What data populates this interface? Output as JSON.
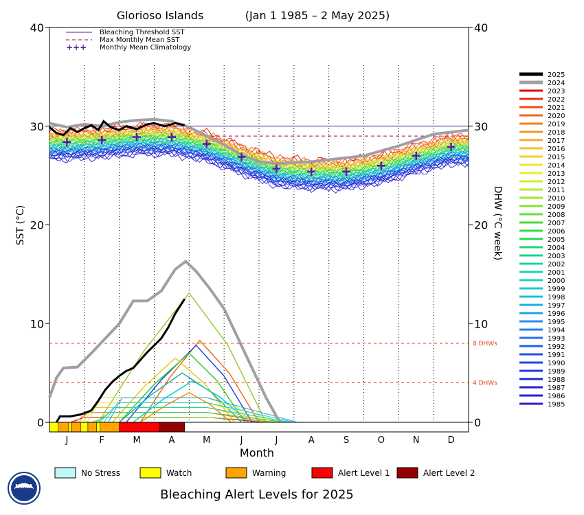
{
  "chart_data": {
    "type": "line",
    "title_left": "Glorioso Islands",
    "title_right": "(Jan 1 1985 – 2 May 2025)",
    "xlabel": "Month",
    "ylabel_left": "SST (°C)",
    "ylabel_right": "DHW (°C week)",
    "months": [
      "J",
      "F",
      "M",
      "A",
      "M",
      "J",
      "J",
      "A",
      "S",
      "O",
      "N",
      "D"
    ],
    "ylim": [
      0,
      40
    ],
    "yticks": [
      "0",
      "10",
      "20",
      "30",
      "40"
    ],
    "bleaching_threshold_sst": 30.0,
    "max_monthly_mean_sst": 29.0,
    "dhw_refs": [
      {
        "value": 8,
        "label": "8 DHWs"
      },
      {
        "value": 4,
        "label": "4 DHWs"
      }
    ],
    "top_legend": [
      {
        "label": "Bleaching Threshold SST",
        "color": "#5a1a8a"
      },
      {
        "label": "Max Monthly Mean SST",
        "color": "#a0005a"
      },
      {
        "label": "Monthly Mean Climatology",
        "color": "#5a1aa8",
        "symbol": "+++"
      }
    ],
    "climatology": [
      {
        "month": 0.5,
        "value": 28.4
      },
      {
        "month": 1.5,
        "value": 28.6
      },
      {
        "month": 2.5,
        "value": 28.9
      },
      {
        "month": 3.5,
        "value": 28.9
      },
      {
        "month": 4.5,
        "value": 28.2
      },
      {
        "month": 5.5,
        "value": 26.9
      },
      {
        "month": 6.5,
        "value": 25.7
      },
      {
        "month": 7.5,
        "value": 25.4
      },
      {
        "month": 8.5,
        "value": 25.4
      },
      {
        "month": 9.5,
        "value": 26.0
      },
      {
        "month": 10.5,
        "value": 27.0
      },
      {
        "month": 11.5,
        "value": 27.9
      }
    ],
    "sst_2025": [
      {
        "month": 0.0,
        "value": 29.9
      },
      {
        "month": 0.2,
        "value": 29.3
      },
      {
        "month": 0.4,
        "value": 29.1
      },
      {
        "month": 0.6,
        "value": 29.8
      },
      {
        "month": 0.8,
        "value": 29.4
      },
      {
        "month": 1.0,
        "value": 29.8
      },
      {
        "month": 1.2,
        "value": 30.1
      },
      {
        "month": 1.4,
        "value": 29.6
      },
      {
        "month": 1.55,
        "value": 30.5
      },
      {
        "month": 1.75,
        "value": 29.9
      },
      {
        "month": 2.0,
        "value": 29.6
      },
      {
        "month": 2.2,
        "value": 30.0
      },
      {
        "month": 2.5,
        "value": 29.7
      },
      {
        "month": 2.8,
        "value": 30.2
      },
      {
        "month": 3.0,
        "value": 30.3
      },
      {
        "month": 3.3,
        "value": 30.0
      },
      {
        "month": 3.6,
        "value": 30.3
      },
      {
        "month": 3.87,
        "value": 30.1
      }
    ],
    "sst_2024": [
      {
        "month": 0.0,
        "value": 30.3
      },
      {
        "month": 0.5,
        "value": 29.9
      },
      {
        "month": 1.0,
        "value": 30.2
      },
      {
        "month": 1.5,
        "value": 30.0
      },
      {
        "month": 2.0,
        "value": 30.4
      },
      {
        "month": 2.5,
        "value": 30.6
      },
      {
        "month": 3.0,
        "value": 30.7
      },
      {
        "month": 3.5,
        "value": 30.5
      },
      {
        "month": 4.0,
        "value": 29.9
      },
      {
        "month": 4.5,
        "value": 29.0
      },
      {
        "month": 5.0,
        "value": 28.1
      },
      {
        "month": 5.5,
        "value": 27.1
      },
      {
        "month": 6.0,
        "value": 26.4
      },
      {
        "month": 6.5,
        "value": 26.2
      },
      {
        "month": 7.0,
        "value": 26.3
      },
      {
        "month": 7.5,
        "value": 26.4
      },
      {
        "month": 8.0,
        "value": 26.6
      },
      {
        "month": 8.5,
        "value": 26.8
      },
      {
        "month": 9.0,
        "value": 27.0
      },
      {
        "month": 9.5,
        "value": 27.5
      },
      {
        "month": 10.0,
        "value": 28.0
      },
      {
        "month": 10.5,
        "value": 28.6
      },
      {
        "month": 11.0,
        "value": 29.2
      },
      {
        "month": 11.5,
        "value": 29.4
      },
      {
        "month": 12.0,
        "value": 29.6
      }
    ],
    "dhw_2025": [
      {
        "month": 0.2,
        "value": 0.0
      },
      {
        "month": 0.3,
        "value": 0.6
      },
      {
        "month": 0.6,
        "value": 0.6
      },
      {
        "month": 0.9,
        "value": 0.8
      },
      {
        "month": 1.2,
        "value": 1.2
      },
      {
        "month": 1.4,
        "value": 2.2
      },
      {
        "month": 1.6,
        "value": 3.3
      },
      {
        "month": 1.8,
        "value": 4.1
      },
      {
        "month": 2.0,
        "value": 4.7
      },
      {
        "month": 2.2,
        "value": 5.2
      },
      {
        "month": 2.4,
        "value": 5.5
      },
      {
        "month": 2.6,
        "value": 6.3
      },
      {
        "month": 2.8,
        "value": 7.1
      },
      {
        "month": 3.0,
        "value": 7.8
      },
      {
        "month": 3.2,
        "value": 8.5
      },
      {
        "month": 3.4,
        "value": 9.6
      },
      {
        "month": 3.6,
        "value": 11.0
      },
      {
        "month": 3.87,
        "value": 12.5
      }
    ],
    "dhw_2024": [
      {
        "month": 0.0,
        "value": 2.5
      },
      {
        "month": 0.2,
        "value": 4.5
      },
      {
        "month": 0.4,
        "value": 5.5
      },
      {
        "month": 0.8,
        "value": 5.6
      },
      {
        "month": 1.2,
        "value": 7.0
      },
      {
        "month": 1.6,
        "value": 8.5
      },
      {
        "month": 2.0,
        "value": 10.0
      },
      {
        "month": 2.4,
        "value": 12.3
      },
      {
        "month": 2.8,
        "value": 12.3
      },
      {
        "month": 3.2,
        "value": 13.3
      },
      {
        "month": 3.6,
        "value": 15.5
      },
      {
        "month": 3.9,
        "value": 16.3
      },
      {
        "month": 4.2,
        "value": 15.3
      },
      {
        "month": 4.6,
        "value": 13.5
      },
      {
        "month": 5.0,
        "value": 11.5
      },
      {
        "month": 5.4,
        "value": 8.5
      },
      {
        "month": 5.8,
        "value": 5.5
      },
      {
        "month": 6.2,
        "value": 2.5
      },
      {
        "month": 6.5,
        "value": 0.6
      },
      {
        "month": 6.6,
        "value": 0.0
      }
    ],
    "dhw_other_peaks": [
      {
        "year": "2019",
        "start": 1.4,
        "peak_month": 4.0,
        "peak": 13.1,
        "end": 6.2,
        "color": "#9acd32"
      },
      {
        "year": "2020",
        "start": 2.6,
        "peak_month": 4.3,
        "peak": 8.3,
        "end": 6.0,
        "color": "#e8701a"
      },
      {
        "year": "2016",
        "start": 2.2,
        "peak_month": 4.2,
        "peak": 7.8,
        "end": 5.8,
        "color": "#2a4ae0"
      },
      {
        "year": "2017",
        "start": 2.0,
        "peak_month": 4.0,
        "peak": 7.0,
        "end": 5.6,
        "color": "#32cd32"
      },
      {
        "year": "2010",
        "start": 1.8,
        "peak_month": 3.6,
        "peak": 6.5,
        "end": 5.3,
        "color": "#e6c619"
      },
      {
        "year": "1998",
        "start": 2.0,
        "peak_month": 3.8,
        "peak": 5.0,
        "end": 5.5,
        "color": "#20b2aa"
      },
      {
        "year": "2005",
        "start": 2.4,
        "peak_month": 4.1,
        "peak": 4.2,
        "end": 5.7,
        "color": "#00ced1"
      },
      {
        "year": "2003",
        "start": 2.6,
        "peak_month": 4.0,
        "peak": 3.0,
        "end": 5.2,
        "color": "#ff8c00"
      }
    ],
    "alert_bar": [
      {
        "from": 0.0,
        "to": 0.25,
        "level": "watch"
      },
      {
        "from": 0.25,
        "to": 0.55,
        "level": "warning"
      },
      {
        "from": 0.55,
        "to": 0.62,
        "level": "watch"
      },
      {
        "from": 0.62,
        "to": 0.9,
        "level": "warning"
      },
      {
        "from": 0.9,
        "to": 1.1,
        "level": "watch"
      },
      {
        "from": 1.1,
        "to": 1.35,
        "level": "warning"
      },
      {
        "from": 1.35,
        "to": 1.45,
        "level": "watch"
      },
      {
        "from": 1.45,
        "to": 2.0,
        "level": "warning"
      },
      {
        "from": 2.0,
        "to": 3.15,
        "level": "alert1"
      },
      {
        "from": 3.15,
        "to": 3.87,
        "level": "alert2"
      }
    ],
    "year_legend": [
      {
        "year": "2025",
        "color": "#000000"
      },
      {
        "year": "2024",
        "color": "#a0a0a0"
      },
      {
        "year": "2023",
        "color": "#e00000"
      },
      {
        "year": "2022",
        "color": "#e62c10"
      },
      {
        "year": "2021",
        "color": "#ec4c14"
      },
      {
        "year": "2020",
        "color": "#f06a18"
      },
      {
        "year": "2019",
        "color": "#f2801c"
      },
      {
        "year": "2018",
        "color": "#f4962a"
      },
      {
        "year": "2017",
        "color": "#f6aa30"
      },
      {
        "year": "2016",
        "color": "#f6be30"
      },
      {
        "year": "2015",
        "color": "#f6d22c"
      },
      {
        "year": "2014",
        "color": "#f4e428"
      },
      {
        "year": "2013",
        "color": "#e6ee28"
      },
      {
        "year": "2012",
        "color": "#cfee2a"
      },
      {
        "year": "2011",
        "color": "#b6ec2c"
      },
      {
        "year": "2010",
        "color": "#9cea2c"
      },
      {
        "year": "2009",
        "color": "#80e62c"
      },
      {
        "year": "2008",
        "color": "#62e230"
      },
      {
        "year": "2007",
        "color": "#44de34"
      },
      {
        "year": "2006",
        "color": "#2cdc44"
      },
      {
        "year": "2005",
        "color": "#20da5a"
      },
      {
        "year": "2004",
        "color": "#1ad870"
      },
      {
        "year": "2003",
        "color": "#18d688"
      },
      {
        "year": "2002",
        "color": "#18d4a0"
      },
      {
        "year": "2001",
        "color": "#18d2b6"
      },
      {
        "year": "2000",
        "color": "#18d0c8"
      },
      {
        "year": "1999",
        "color": "#1ac8d4"
      },
      {
        "year": "1998",
        "color": "#1cbcdc"
      },
      {
        "year": "1997",
        "color": "#1eaee2"
      },
      {
        "year": "1996",
        "color": "#1ea0e6"
      },
      {
        "year": "1995",
        "color": "#1e90ea"
      },
      {
        "year": "1994",
        "color": "#1e80ec"
      },
      {
        "year": "1993",
        "color": "#1e70ec"
      },
      {
        "year": "1992",
        "color": "#1e60ea"
      },
      {
        "year": "1991",
        "color": "#1e52e6"
      },
      {
        "year": "1990",
        "color": "#1e44e2"
      },
      {
        "year": "1989",
        "color": "#1e36dc"
      },
      {
        "year": "1988",
        "color": "#1e2ad6"
      },
      {
        "year": "1987",
        "color": "#2420d0"
      },
      {
        "year": "1986",
        "color": "#2e1ccc"
      },
      {
        "year": "1985",
        "color": "#3a18c8"
      }
    ],
    "alert_legend": [
      {
        "key": "none",
        "label": "No Stress",
        "color": "#c0f8f8"
      },
      {
        "key": "watch",
        "label": "Watch",
        "color": "#ffff00"
      },
      {
        "key": "warning",
        "label": "Warning",
        "color": "#ffa500"
      },
      {
        "key": "alert1",
        "label": "Alert Level 1",
        "color": "#ff0000"
      },
      {
        "key": "alert2",
        "label": "Alert Level 2",
        "color": "#960000"
      }
    ],
    "footer": "Bleaching Alert Levels for 2025",
    "logo_text": "NOAA"
  }
}
